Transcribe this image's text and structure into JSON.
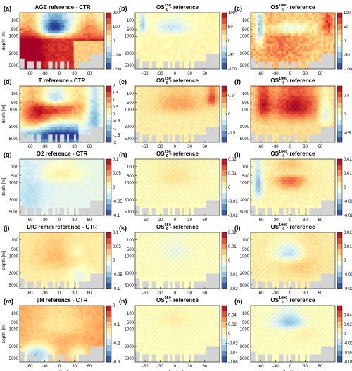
{
  "chart_data": {
    "type": "heatmap",
    "xlabel": "Latitude",
    "ylabel": "depth [m]",
    "x_ticks": [
      -60,
      -30,
      0,
      30,
      60
    ],
    "y_ticks": [
      100,
      500,
      1000,
      3000,
      5000
    ],
    "colormap": [
      "#2a3a93",
      "#4575b4",
      "#74add1",
      "#abd9e9",
      "#e0f3f8",
      "#ffffbf",
      "#fee090",
      "#fdae61",
      "#f46d43",
      "#d73027",
      "#a50026"
    ],
    "masked_color": "#d4d4d4",
    "panels": [
      {
        "label": "(a)",
        "title_parts": [
          "IAGE reference - CTR"
        ],
        "clim": [
          -200,
          200
        ],
        "cbar_ticks": [
          "200",
          "100",
          "0",
          "-100",
          "-200"
        ],
        "pattern": "age_ctr",
        "hatched": false
      },
      {
        "label": "(b)",
        "title_parts": [
          "OS",
          "250",
          "0",
          " - reference"
        ],
        "clim": [
          -100,
          100
        ],
        "cbar_ticks": [
          "100",
          "50",
          "0",
          "-50",
          "-100"
        ],
        "pattern": "age_250",
        "hatched": false
      },
      {
        "label": "(c)",
        "title_parts": [
          "OS",
          "1000",
          "0",
          " - reference"
        ],
        "clim": [
          -100,
          100
        ],
        "cbar_ticks": [
          "100",
          "50",
          "0",
          "-50",
          "-100"
        ],
        "pattern": "age_1000",
        "hatched": false
      },
      {
        "label": "(d)",
        "title_parts": [
          "T reference - CTR"
        ],
        "clim": [
          -2,
          2
        ],
        "cbar_ticks": [
          "2",
          "1.5",
          "1",
          "0.5",
          "0",
          "-0.5",
          "-1",
          "-1.5",
          "-2"
        ],
        "pattern": "temp_ctr",
        "hatched": false
      },
      {
        "label": "(e)",
        "title_parts": [
          "OS",
          "250",
          "0",
          " - reference"
        ],
        "clim": [
          -0.75,
          0.75
        ],
        "cbar_ticks": [
          "0.5",
          "0",
          "-0.5"
        ],
        "pattern": "temp_250",
        "hatched": true
      },
      {
        "label": "(f)",
        "title_parts": [
          "OS",
          "1000",
          "0",
          " - reference"
        ],
        "clim": [
          -0.75,
          0.75
        ],
        "cbar_ticks": [
          "0.5",
          "0",
          "-0.5"
        ],
        "pattern": "temp_1000",
        "hatched": true
      },
      {
        "label": "(g)",
        "title_parts": [
          "O2 reference - CTR"
        ],
        "clim": [
          -0.1,
          0.1
        ],
        "cbar_ticks": [
          "0.1",
          "0.05",
          "0",
          "-0.05",
          "-0.1"
        ],
        "pattern": "o2_ctr",
        "hatched": false
      },
      {
        "label": "(h)",
        "title_parts": [
          "OS",
          "250",
          "0",
          " - reference"
        ],
        "clim": [
          -0.02,
          0.02
        ],
        "cbar_ticks": [
          "0.02",
          "0.01",
          "0",
          "-0.01",
          "-0.02"
        ],
        "pattern": "o2_250",
        "hatched": true
      },
      {
        "label": "(i)",
        "title_parts": [
          "OS",
          "1000",
          "0",
          " - reference"
        ],
        "clim": [
          -0.02,
          0.02
        ],
        "cbar_ticks": [
          "0.02",
          "0.01",
          "0",
          "-0.01",
          "-0.02"
        ],
        "pattern": "o2_1000",
        "hatched": true
      },
      {
        "label": "(j)",
        "title_parts": [
          "DIC remin reference - CTR"
        ],
        "clim": [
          -0.1,
          0.1
        ],
        "cbar_ticks": [
          "0.1",
          "0.05",
          "0",
          "-0.05",
          "-0.1"
        ],
        "pattern": "dic_ctr",
        "hatched": false
      },
      {
        "label": "(k)",
        "title_parts": [
          "OS",
          "250",
          "0",
          " - reference"
        ],
        "clim": [
          -0.02,
          0.02
        ],
        "cbar_ticks": [
          "0.02",
          "0.01",
          "0",
          "-0.01",
          "-0.02"
        ],
        "pattern": "dic_250",
        "hatched": true
      },
      {
        "label": "(l)",
        "title_parts": [
          "OS",
          "1000",
          "0",
          " - reference"
        ],
        "clim": [
          -0.02,
          0.02
        ],
        "cbar_ticks": [
          "0.02",
          "0.01",
          "0",
          "-0.01",
          "-0.02"
        ],
        "pattern": "dic_1000",
        "hatched": true
      },
      {
        "label": "(m)",
        "title_parts": [
          "pH reference - CTR"
        ],
        "clim": [
          -0.3,
          0
        ],
        "cbar_ticks": [
          "0",
          "-0.1",
          "-0.2",
          "-0.3"
        ],
        "pattern": "ph_ctr",
        "hatched": false
      },
      {
        "label": "(n)",
        "title_parts": [
          "OS",
          "250",
          "0",
          " - reference"
        ],
        "clim": [
          -0.06,
          0.06
        ],
        "cbar_ticks": [
          "0.04",
          "0.02",
          "0",
          "-0.02",
          "-0.04",
          "-0.06"
        ],
        "pattern": "ph_250",
        "hatched": true
      },
      {
        "label": "(o)",
        "title_parts": [
          "OS",
          "1000",
          "0",
          " - reference"
        ],
        "clim": [
          -0.06,
          0.06
        ],
        "cbar_ticks": [
          "0.04",
          "0.02",
          "0",
          "-0.02",
          "-0.04",
          "-0.06"
        ],
        "pattern": "ph_1000",
        "hatched": true
      }
    ]
  }
}
